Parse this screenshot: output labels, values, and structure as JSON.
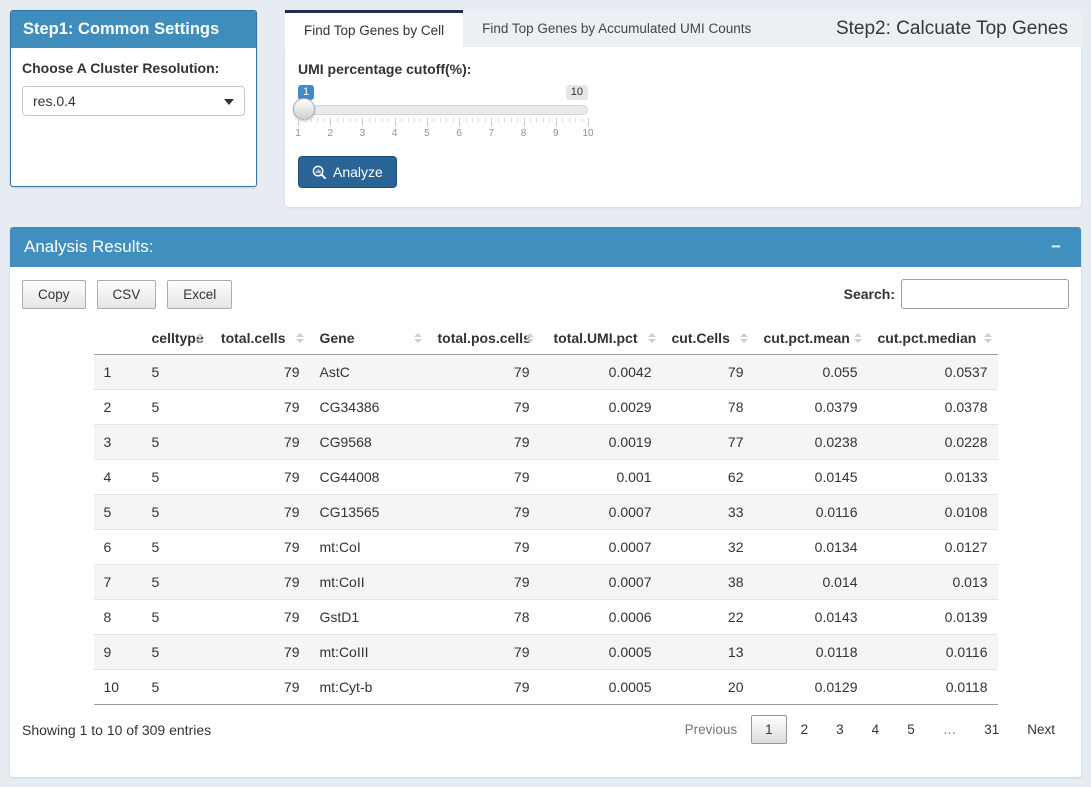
{
  "step1": {
    "title": "Step1: Common Settings",
    "resolution_label": "Choose A Cluster Resolution:",
    "resolution_value": "res.0.4"
  },
  "step2": {
    "title": "Step2: Calcuate Top Genes",
    "tabs": [
      {
        "label": "Find Top Genes by Cell",
        "active": true
      },
      {
        "label": "Find Top Genes by Accumulated UMI Counts",
        "active": false
      }
    ],
    "slider": {
      "label": "UMI percentage cutoff(%):",
      "value": "1",
      "max_label": "10",
      "ticks": [
        "1",
        "2",
        "3",
        "4",
        "5",
        "6",
        "7",
        "8",
        "9",
        "10"
      ]
    },
    "analyze_label": "Analyze",
    "analyze_icon": "magnifier-chart-icon"
  },
  "results": {
    "title": "Analysis Results:",
    "collapse_icon": "minus",
    "collapse_glyph": "−",
    "export_buttons": [
      "Copy",
      "CSV",
      "Excel"
    ],
    "search_label": "Search:",
    "search_value": "",
    "table": {
      "columns": [
        "",
        "celltype",
        "total.cells",
        "Gene",
        "total.pos.cells",
        "total.UMI.pct",
        "cut.Cells",
        "cut.pct.mean",
        "cut.pct.median"
      ],
      "rows": [
        [
          "1",
          "5",
          "79",
          "AstC",
          "79",
          "0.0042",
          "79",
          "0.055",
          "0.0537"
        ],
        [
          "2",
          "5",
          "79",
          "CG34386",
          "79",
          "0.0029",
          "78",
          "0.0379",
          "0.0378"
        ],
        [
          "3",
          "5",
          "79",
          "CG9568",
          "79",
          "0.0019",
          "77",
          "0.0238",
          "0.0228"
        ],
        [
          "4",
          "5",
          "79",
          "CG44008",
          "79",
          "0.001",
          "62",
          "0.0145",
          "0.0133"
        ],
        [
          "5",
          "5",
          "79",
          "CG13565",
          "79",
          "0.0007",
          "33",
          "0.0116",
          "0.0108"
        ],
        [
          "6",
          "5",
          "79",
          "mt:CoI",
          "79",
          "0.0007",
          "32",
          "0.0134",
          "0.0127"
        ],
        [
          "7",
          "5",
          "79",
          "mt:CoII",
          "79",
          "0.0007",
          "38",
          "0.014",
          "0.013"
        ],
        [
          "8",
          "5",
          "79",
          "GstD1",
          "78",
          "0.0006",
          "22",
          "0.0143",
          "0.0139"
        ],
        [
          "9",
          "5",
          "79",
          "mt:CoIII",
          "79",
          "0.0005",
          "13",
          "0.0118",
          "0.0116"
        ],
        [
          "10",
          "5",
          "79",
          "mt:Cyt-b",
          "79",
          "0.0005",
          "20",
          "0.0129",
          "0.0118"
        ]
      ]
    },
    "info": "Showing 1 to 10 of 309 entries",
    "pagination": {
      "previous": "Previous",
      "pages": [
        "1",
        "2",
        "3",
        "4",
        "5",
        "…",
        "31"
      ],
      "active": "1",
      "next": "Next"
    }
  },
  "colors": {
    "page_background": "#e7ecf2",
    "panel_header_blue": "#3e8dbd",
    "active_tab_border": "#20304c",
    "analyze_button": "#2a6496",
    "slider_value_badge": "#428bca"
  }
}
